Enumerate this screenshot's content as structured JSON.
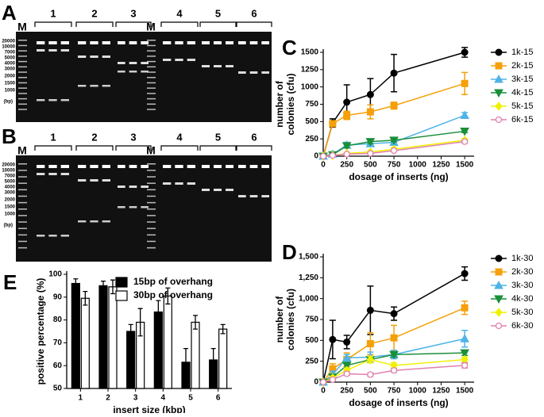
{
  "gels": [
    {
      "label": "A",
      "lanes": [
        "M",
        "1",
        "2",
        "3",
        "M",
        "4",
        "5",
        "6"
      ],
      "ladder": [
        "20000",
        "10000",
        "7000",
        "5000",
        "4000",
        "3000",
        "2000",
        "1500",
        "1000"
      ],
      "unit": "(bp)"
    },
    {
      "label": "B",
      "lanes": [
        "M",
        "1",
        "2",
        "3",
        "M",
        "4",
        "5",
        "6"
      ],
      "ladder": [
        "20000",
        "10000",
        "7000",
        "5000",
        "4000",
        "3000",
        "2000",
        "1500",
        "1000"
      ],
      "unit": "(bp)"
    }
  ],
  "chart_data": [
    {
      "label": "C",
      "type": "line",
      "xlabel": "dosage of inserts (ng)",
      "ylabel": [
        "number of",
        "colonies (cfu)"
      ],
      "x": [
        0,
        100,
        250,
        500,
        750,
        1500
      ],
      "xlim": [
        0,
        1600
      ],
      "xticks": [
        0,
        250,
        500,
        750,
        1000,
        1250,
        1500
      ],
      "ylim": [
        0,
        1500
      ],
      "yticks": [
        0,
        250,
        500,
        750,
        1000,
        1250,
        1500
      ],
      "series": [
        {
          "name": "1k-15",
          "color": "#000000",
          "marker": "circle",
          "values": [
            0,
            480,
            780,
            890,
            1200,
            1500
          ],
          "errors": [
            0,
            60,
            250,
            230,
            270,
            70
          ]
        },
        {
          "name": "2k-15",
          "color": "#f5a00a",
          "marker": "square",
          "values": [
            0,
            470,
            590,
            640,
            730,
            1050
          ],
          "errors": [
            0,
            40,
            60,
            100,
            50,
            160
          ]
        },
        {
          "name": "3k-15",
          "color": "#4fb3e8",
          "marker": "triangle-up",
          "values": [
            0,
            30,
            160,
            180,
            200,
            590
          ],
          "errors": [
            0,
            10,
            40,
            30,
            40,
            40
          ]
        },
        {
          "name": "4k-15",
          "color": "#1a8f3a",
          "marker": "triangle-down",
          "values": [
            0,
            20,
            150,
            210,
            230,
            360
          ],
          "errors": [
            0,
            10,
            30,
            30,
            20,
            20
          ]
        },
        {
          "name": "5k-15",
          "color": "#f0f000",
          "marker": "diamond",
          "values": [
            0,
            10,
            40,
            60,
            100,
            230
          ],
          "errors": [
            0,
            5,
            10,
            10,
            20,
            20
          ]
        },
        {
          "name": "6k-15",
          "color": "#e080b0",
          "marker": "open-circle",
          "values": [
            0,
            10,
            30,
            40,
            80,
            210
          ],
          "errors": [
            0,
            5,
            10,
            10,
            10,
            20
          ]
        }
      ]
    },
    {
      "label": "D",
      "type": "line",
      "xlabel": "dosage of inserts (ng)",
      "ylabel": [
        "number of",
        "colonies (cfu)"
      ],
      "x": [
        0,
        100,
        250,
        500,
        750,
        1500
      ],
      "xlim": [
        0,
        1600
      ],
      "xticks": [
        0,
        250,
        500,
        750,
        1000,
        1250,
        1500
      ],
      "ylim": [
        0,
        1500
      ],
      "yticks": [
        0,
        250,
        500,
        750,
        {
          "value": 1000,
          "label": "1,000"
        },
        {
          "value": 1250,
          "label": "1,250"
        },
        {
          "value": 1500,
          "label": "1,500"
        }
      ],
      "series": [
        {
          "name": "1k-30",
          "color": "#000000",
          "marker": "circle",
          "values": [
            0,
            510,
            480,
            860,
            820,
            1300
          ],
          "errors": [
            0,
            230,
            80,
            290,
            80,
            80
          ]
        },
        {
          "name": "2k-30",
          "color": "#f5a00a",
          "marker": "square",
          "values": [
            0,
            160,
            270,
            460,
            530,
            890
          ],
          "errors": [
            0,
            60,
            80,
            130,
            150,
            80
          ]
        },
        {
          "name": "3k-30",
          "color": "#4fb3e8",
          "marker": "triangle-up",
          "values": [
            0,
            90,
            290,
            300,
            330,
            520
          ],
          "errors": [
            0,
            40,
            40,
            60,
            50,
            100
          ]
        },
        {
          "name": "4k-30",
          "color": "#1a8f3a",
          "marker": "triangle-down",
          "values": [
            0,
            60,
            200,
            270,
            330,
            350
          ],
          "errors": [
            0,
            30,
            30,
            40,
            30,
            30
          ]
        },
        {
          "name": "5k-30",
          "color": "#f0f000",
          "marker": "diamond",
          "values": [
            0,
            50,
            140,
            270,
            200,
            270
          ],
          "errors": [
            0,
            20,
            30,
            40,
            30,
            30
          ]
        },
        {
          "name": "6k-30",
          "color": "#e080b0",
          "marker": "open-circle",
          "values": [
            0,
            30,
            100,
            90,
            140,
            200
          ],
          "errors": [
            0,
            10,
            20,
            20,
            20,
            30
          ]
        }
      ]
    },
    {
      "label": "E",
      "type": "bar",
      "xlabel": "insert size (kbp)",
      "ylabel": "positive percentage (%)",
      "categories": [
        "1",
        "2",
        "3",
        "4",
        "5",
        "6"
      ],
      "ylim": [
        50,
        100
      ],
      "yticks": [
        50,
        60,
        70,
        80,
        90,
        100
      ],
      "series": [
        {
          "name": "15bp of overhang",
          "color": "#000000",
          "values": [
            96,
            95,
            75,
            83.5,
            61.5,
            62.5
          ],
          "errors": [
            2,
            2,
            3,
            5,
            6,
            5
          ]
        },
        {
          "name": "30bp of overhang",
          "color": "#ffffff",
          "values": [
            89.5,
            94.5,
            79,
            90.5,
            79,
            76
          ],
          "errors": [
            3,
            3,
            6,
            3.5,
            3,
            2
          ]
        }
      ]
    }
  ]
}
